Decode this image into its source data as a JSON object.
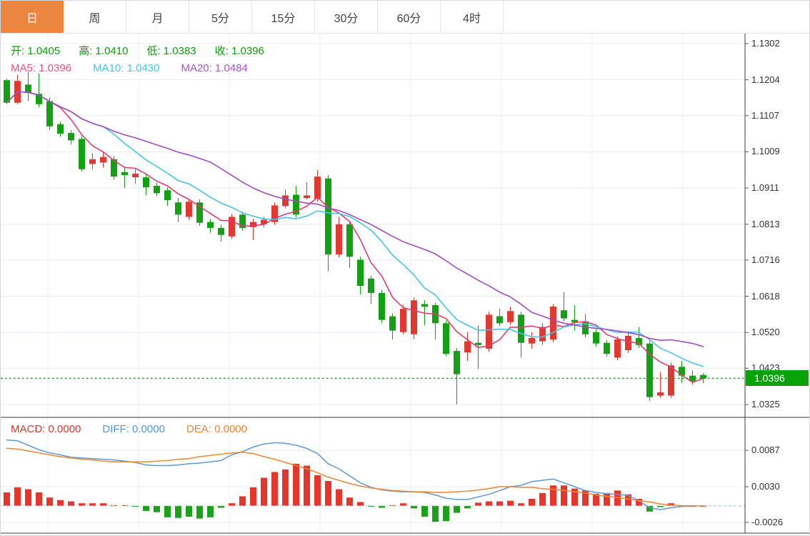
{
  "tabs": [
    {
      "label": "日",
      "active": true
    },
    {
      "label": "周",
      "active": false
    },
    {
      "label": "月",
      "active": false
    },
    {
      "label": "5分",
      "active": false
    },
    {
      "label": "15分",
      "active": false
    },
    {
      "label": "30分",
      "active": false
    },
    {
      "label": "60分",
      "active": false
    },
    {
      "label": "4时",
      "active": false
    }
  ],
  "tab_active_color": "#ec8540",
  "ohlc_legend": {
    "color": "#0a9c0a",
    "items": [
      {
        "label": "开:",
        "value": "1.0405"
      },
      {
        "label": "高:",
        "value": "1.0410"
      },
      {
        "label": "低:",
        "value": "1.0383"
      },
      {
        "label": "收:",
        "value": "1.0396"
      }
    ]
  },
  "ma_legend": [
    {
      "label": "MA5:",
      "value": "1.0396",
      "color": "#e85380"
    },
    {
      "label": "MA10:",
      "value": "1.0430",
      "color": "#45c5e8"
    },
    {
      "label": "MA20:",
      "value": "1.0484",
      "color": "#a855cc"
    }
  ],
  "macd_legend": [
    {
      "label": "MACD:",
      "value": "0.0000",
      "color": "#d2382e"
    },
    {
      "label": "DIFF:",
      "value": "0.0000",
      "color": "#4f97dc"
    },
    {
      "label": "DEA:",
      "value": "0.0000",
      "color": "#f08631"
    }
  ],
  "price_axis": {
    "ticks": [
      "1.1302",
      "1.1204",
      "1.1107",
      "1.1009",
      "1.0911",
      "1.0813",
      "1.0716",
      "1.0618",
      "1.0520",
      "1.0423",
      "1.0325"
    ],
    "current_price_badge": "1.0396",
    "badge_color": "#09a309"
  },
  "macd_axis": {
    "ticks": [
      "0.0087",
      "0.0030",
      "-0.0026"
    ]
  },
  "colors": {
    "candle_up": "#e2382f",
    "candle_down": "#12a112",
    "hist_up": "#e8352b",
    "hist_down": "#1aa31a",
    "ma5_line": "#e13c6f",
    "ma10_line": "#44c4e6",
    "ma20_line": "#a14cbe",
    "diff_line": "#5b9bd5",
    "dea_line": "#ee8732",
    "current_price_line": "#09a309",
    "grid": "#e9eef5",
    "axis_line": "#3d3d3d"
  },
  "chart_data": [
    {
      "type": "candlestick",
      "title": "",
      "note": "Chinese color convention: red = rising candle, green = falling candle",
      "ylim": [
        1.0325,
        1.1302
      ],
      "y_ticks": [
        1.1302,
        1.1204,
        1.1107,
        1.1009,
        1.0911,
        1.0813,
        1.0716,
        1.0618,
        1.052,
        1.0423,
        1.0325
      ],
      "current_price": 1.0396,
      "last_bar_ohlc": {
        "open": 1.0405,
        "high": 1.041,
        "low": 1.0383,
        "close": 1.0396
      },
      "ma": [
        {
          "period": 5,
          "last_value": 1.0396
        },
        {
          "period": 10,
          "last_value": 1.043
        },
        {
          "period": 20,
          "last_value": 1.0484
        }
      ],
      "candles_ohlc": [
        [
          1.1203,
          1.1207,
          1.1138,
          1.1142
        ],
        [
          1.1142,
          1.1217,
          1.1138,
          1.1201
        ],
        [
          1.1191,
          1.1225,
          1.1146,
          1.1168
        ],
        [
          1.1166,
          1.1221,
          1.1129,
          1.1138
        ],
        [
          1.1146,
          1.1156,
          1.1068,
          1.1078
        ],
        [
          1.1084,
          1.1091,
          1.105,
          1.1058
        ],
        [
          1.106,
          1.1068,
          1.1029,
          1.104
        ],
        [
          1.1044,
          1.1052,
          1.0956,
          1.0962
        ],
        [
          1.0976,
          1.1005,
          1.0962,
          1.0989
        ],
        [
          1.098,
          1.1009,
          1.0966,
          1.0995
        ],
        [
          1.0989,
          1.0997,
          1.0934,
          1.0942
        ],
        [
          1.0954,
          1.0966,
          1.0911,
          1.0946
        ],
        [
          1.094,
          1.0962,
          1.0923,
          1.095
        ],
        [
          1.094,
          1.0948,
          1.0891,
          1.0913
        ],
        [
          1.0917,
          1.0925,
          1.0889,
          1.0897
        ],
        [
          1.0905,
          1.0913,
          1.0862,
          1.0878
        ],
        [
          1.0872,
          1.0884,
          1.0819,
          1.0839
        ],
        [
          1.0833,
          1.0882,
          1.0825,
          1.0874
        ],
        [
          1.0872,
          1.088,
          1.0809,
          1.0817
        ],
        [
          1.0819,
          1.0827,
          1.079,
          1.0803
        ],
        [
          1.0803,
          1.0811,
          1.0766,
          1.0784
        ],
        [
          1.078,
          1.0841,
          1.0774,
          1.0833
        ],
        [
          1.0839,
          1.0846,
          1.0795,
          1.0803
        ],
        [
          1.0805,
          1.0827,
          1.077,
          1.0819
        ],
        [
          1.0813,
          1.0833,
          1.0805,
          1.0825
        ],
        [
          1.0819,
          1.0872,
          1.0811,
          1.0864
        ],
        [
          1.0862,
          1.0907,
          1.0856,
          1.0891
        ],
        [
          1.0893,
          1.0917,
          1.0831,
          1.0839
        ],
        [
          1.0884,
          1.0927,
          1.088,
          1.0891
        ],
        [
          1.0882,
          1.096,
          1.0874,
          1.0942
        ],
        [
          1.0937,
          1.0946,
          1.0686,
          1.0731
        ],
        [
          1.0731,
          1.0833,
          1.0723,
          1.0813
        ],
        [
          1.0813,
          1.0821,
          1.0695,
          1.0725
        ],
        [
          1.0717,
          1.0725,
          1.0623,
          1.0646
        ],
        [
          1.0666,
          1.0674,
          1.0597,
          1.0627
        ],
        [
          1.0627,
          1.0635,
          1.0546,
          1.0554
        ],
        [
          1.0564,
          1.0572,
          1.0501,
          1.0525
        ],
        [
          1.0521,
          1.0594,
          1.0515,
          1.0584
        ],
        [
          1.0515,
          1.0615,
          1.0501,
          1.0607
        ],
        [
          1.0597,
          1.0607,
          1.0539,
          1.059
        ],
        [
          1.0594,
          1.0601,
          1.0501,
          1.0545
        ],
        [
          1.0545,
          1.0552,
          1.0456,
          1.0462
        ],
        [
          1.047,
          1.0478,
          1.0325,
          1.0407
        ],
        [
          1.0466,
          1.0521,
          1.0443,
          1.0496
        ],
        [
          1.0492,
          1.0539,
          1.0421,
          1.0486
        ],
        [
          1.0476,
          1.0576,
          1.0468,
          1.0568
        ],
        [
          1.0564,
          1.0584,
          1.0537,
          1.0545
        ],
        [
          1.0548,
          1.059,
          1.0541,
          1.0578
        ],
        [
          1.0568,
          1.0576,
          1.0452,
          1.0492
        ],
        [
          1.049,
          1.0521,
          1.0476,
          1.0505
        ],
        [
          1.0496,
          1.0545,
          1.0486,
          1.0535
        ],
        [
          1.0501,
          1.0597,
          1.0494,
          1.059
        ],
        [
          1.058,
          1.0629,
          1.055,
          1.0558
        ],
        [
          1.0554,
          1.0594,
          1.0525,
          1.0548
        ],
        [
          1.055,
          1.057,
          1.0507,
          1.0515
        ],
        [
          1.0521,
          1.0529,
          1.0482,
          1.049
        ],
        [
          1.0492,
          1.0499,
          1.0454,
          1.0462
        ],
        [
          1.0452,
          1.0509,
          1.0445,
          1.0501
        ],
        [
          1.0472,
          1.0519,
          1.0464,
          1.0511
        ],
        [
          1.0505,
          1.0535,
          1.0478,
          1.0486
        ],
        [
          1.049,
          1.0497,
          1.0335,
          1.0345
        ],
        [
          1.0349,
          1.0413,
          1.0343,
          1.0358
        ],
        [
          1.0349,
          1.0439,
          1.0343,
          1.0431
        ],
        [
          1.0427,
          1.0443,
          1.0384,
          1.0403
        ],
        [
          1.0403,
          1.0417,
          1.0378,
          1.0388
        ],
        [
          1.0405,
          1.041,
          1.0383,
          1.0396
        ]
      ]
    },
    {
      "type": "bar",
      "title": "MACD (12,26,9)",
      "ylim": [
        -0.0026,
        0.0087
      ],
      "y_ticks": [
        0.0087,
        0.003,
        -0.0026
      ],
      "macd_value": 0.0,
      "diff_value": 0.0,
      "dea_value": 0.0,
      "histogram": [
        0.0021,
        0.0029,
        0.0026,
        0.0021,
        0.0013,
        0.0009,
        0.0007,
        0.0004,
        0.0004,
        0.0004,
        0.0001,
        0.0001,
        -0.0001,
        -0.0008,
        -0.001,
        -0.0018,
        -0.0019,
        -0.0017,
        -0.002,
        -0.0018,
        -0.0003,
        0.0004,
        0.0015,
        0.0029,
        0.0044,
        0.0053,
        0.0057,
        0.0066,
        0.0063,
        0.0048,
        0.0039,
        0.0026,
        0.0013,
        0.0006,
        -0.0001,
        -0.0003,
        0.0001,
        0.0004,
        -0.0004,
        -0.0017,
        -0.0025,
        -0.0024,
        -0.0011,
        -0.0004,
        0.0005,
        0.0007,
        0.0007,
        0.0008,
        0.0004,
        0.0011,
        0.002,
        0.0032,
        0.0032,
        0.0027,
        0.0024,
        0.0019,
        0.002,
        0.0024,
        0.0018,
        0.0011,
        -0.0009,
        -0.0002,
        0.0004,
        0.0001,
        0.0,
        0.0
      ],
      "series": [
        {
          "name": "DIFF",
          "values": [
            0.0103,
            0.0102,
            0.0095,
            0.0088,
            0.0083,
            0.008,
            0.0076,
            0.0075,
            0.0074,
            0.0073,
            0.0072,
            0.007,
            0.0068,
            0.0064,
            0.0063,
            0.0063,
            0.0064,
            0.0066,
            0.0067,
            0.0069,
            0.0071,
            0.008,
            0.0085,
            0.0092,
            0.0097,
            0.0099,
            0.0098,
            0.0095,
            0.009,
            0.0082,
            0.0066,
            0.0058,
            0.0047,
            0.0036,
            0.0029,
            0.0025,
            0.0023,
            0.0022,
            0.0022,
            0.0021,
            0.0017,
            0.0012,
            0.001,
            0.001,
            0.0014,
            0.0018,
            0.0024,
            0.003,
            0.0032,
            0.0038,
            0.004,
            0.0042,
            0.0036,
            0.003,
            0.0024,
            0.0021,
            0.0019,
            0.0018,
            0.0016,
            0.0008,
            -0.0003,
            -0.0006,
            -0.0003,
            -0.0001,
            0.0,
            0.0
          ]
        },
        {
          "name": "DEA",
          "values": [
            0.009,
            0.0089,
            0.0086,
            0.0083,
            0.008,
            0.0077,
            0.0075,
            0.0073,
            0.0072,
            0.007,
            0.0069,
            0.0069,
            0.0069,
            0.0069,
            0.007,
            0.0071,
            0.0073,
            0.0074,
            0.0077,
            0.0079,
            0.0081,
            0.0083,
            0.0084,
            0.0082,
            0.0077,
            0.0073,
            0.0068,
            0.0063,
            0.0058,
            0.0052,
            0.0045,
            0.004,
            0.0035,
            0.0031,
            0.0028,
            0.0026,
            0.0024,
            0.0023,
            0.0022,
            0.0022,
            0.0021,
            0.0021,
            0.0022,
            0.0023,
            0.0025,
            0.0027,
            0.003,
            0.003,
            0.0029,
            0.0029,
            0.0027,
            0.0026,
            0.0024,
            0.0022,
            0.002,
            0.0017,
            0.0015,
            0.0013,
            0.0011,
            0.0008,
            0.0006,
            0.0003,
            0.0001,
            0.0,
            0.0,
            0.0
          ]
        }
      ]
    }
  ]
}
